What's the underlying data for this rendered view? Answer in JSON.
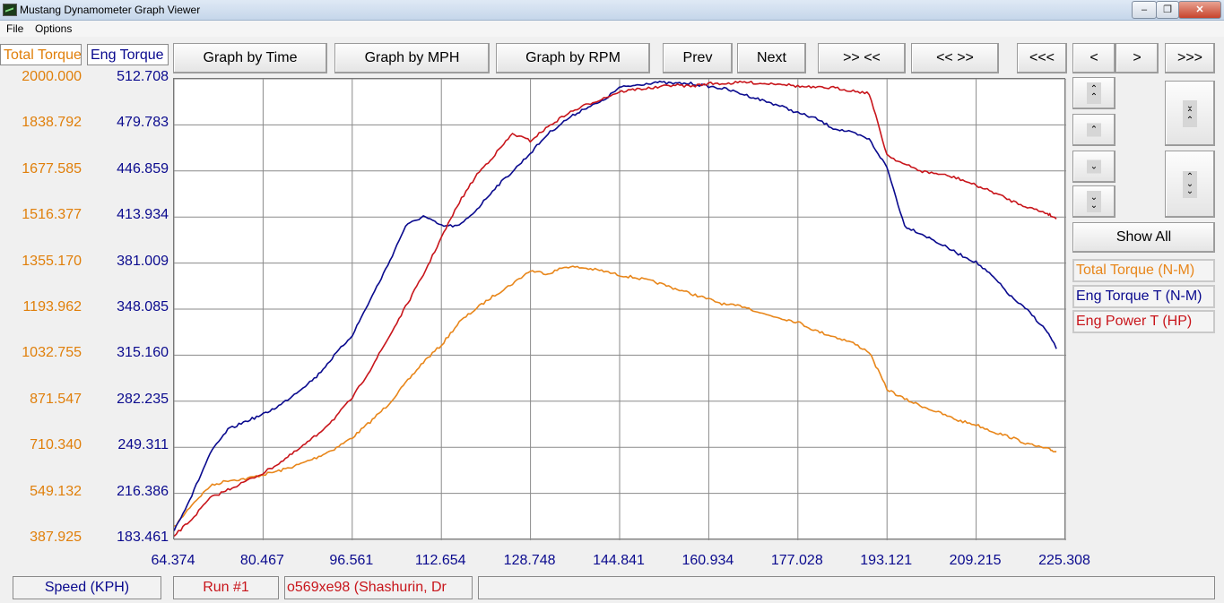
{
  "window": {
    "title": "Mustang Dynamometer Graph Viewer",
    "minimize_label": "–",
    "maximize_label": "❐",
    "close_label": "✕"
  },
  "menu": [
    "File",
    "Options"
  ],
  "toolbar": {
    "graph_by_time": "Graph by Time",
    "graph_by_mph": "Graph by MPH",
    "graph_by_rpm": "Graph by RPM",
    "prev": "Prev",
    "next": "Next",
    "zoom_in_x": ">> <<",
    "zoom_out_x": "<< >>",
    "first": "<<<",
    "back": "<",
    "forward": ">",
    "last": ">>>"
  },
  "axis_headers": {
    "left": "Total Torque",
    "right": "Eng Torque"
  },
  "right_panel": {
    "show_all": "Show All",
    "legend": [
      {
        "label": "Total Torque (N-M)",
        "color": "#e8861a"
      },
      {
        "label": "Eng Torque T (N-M)",
        "color": "#0a0a8e"
      },
      {
        "label": "Eng Power T (HP)",
        "color": "#c8151b"
      }
    ]
  },
  "status": {
    "x_axis_label": "Speed (KPH)",
    "run": "Run #1",
    "vehicle": "o569xe98 (Shashurin, Dr",
    "extra": ""
  },
  "colors": {
    "total_torque": "#e8861a",
    "eng_torque": "#0a0a8e",
    "eng_power": "#c8151b",
    "grid": "#8a8a8a"
  },
  "chart_data": {
    "type": "line",
    "xlabel": "Speed (KPH)",
    "x_ticks": [
      "64.374",
      "80.467",
      "96.561",
      "112.654",
      "128.748",
      "144.841",
      "160.934",
      "177.028",
      "193.121",
      "209.215",
      "225.308"
    ],
    "xlim": [
      64.374,
      225.308
    ],
    "left_axis": {
      "label": "Total Torque",
      "ylim": [
        387.925,
        2000.0
      ],
      "ticks": [
        "2000.000",
        "1838.792",
        "1677.585",
        "1516.377",
        "1355.170",
        "1193.962",
        "1032.755",
        "871.547",
        "710.340",
        "549.132",
        "387.925"
      ]
    },
    "right_axis": {
      "label": "Eng Torque",
      "ylim": [
        183.461,
        512.708
      ],
      "ticks": [
        "512.708",
        "479.783",
        "446.859",
        "413.934",
        "381.009",
        "348.085",
        "315.160",
        "282.235",
        "249.311",
        "216.386",
        "183.461"
      ]
    },
    "grid": true,
    "series": [
      {
        "name": "Total Torque (N-M)",
        "axis": "left",
        "color": "#e8861a",
        "x": [
          64.4,
          67.6,
          70.9,
          74.1,
          77.3,
          80.5,
          83.7,
          86.9,
          90.1,
          93.3,
          96.6,
          99.8,
          103.0,
          106.2,
          109.4,
          112.7,
          115.9,
          119.1,
          122.3,
          125.5,
          128.7,
          131.9,
          135.2,
          138.4,
          141.6,
          144.8,
          148.0,
          151.3,
          154.5,
          157.7,
          160.9,
          164.1,
          167.4,
          170.6,
          173.8,
          177.0,
          180.2,
          183.4,
          186.6,
          189.9,
          193.1,
          196.3,
          199.5,
          202.8,
          206.0,
          209.2,
          212.4,
          215.6,
          218.9,
          222.1,
          223.7
        ],
        "y": [
          430,
          510,
          575,
          595,
          600,
          615,
          630,
          650,
          675,
          705,
          745,
          800,
          860,
          935,
          1010,
          1070,
          1150,
          1200,
          1245,
          1285,
          1330,
          1320,
          1345,
          1340,
          1330,
          1315,
          1305,
          1290,
          1270,
          1250,
          1230,
          1210,
          1205,
          1180,
          1165,
          1150,
          1120,
          1100,
          1080,
          1045,
          915,
          880,
          855,
          830,
          805,
          790,
          765,
          745,
          720,
          705,
          695
        ]
      },
      {
        "name": "Eng Torque T (N-M)",
        "axis": "right",
        "color": "#0a0a8e",
        "x": [
          64.4,
          67.6,
          70.9,
          74.1,
          77.3,
          80.5,
          83.7,
          86.9,
          90.1,
          93.3,
          96.6,
          99.8,
          103.0,
          106.2,
          109.4,
          112.7,
          115.9,
          119.1,
          122.3,
          125.5,
          128.7,
          131.9,
          135.2,
          138.4,
          141.6,
          144.8,
          148.0,
          151.3,
          154.5,
          157.7,
          160.9,
          164.1,
          167.4,
          170.6,
          173.8,
          177.0,
          180.2,
          183.4,
          186.6,
          189.9,
          193.1,
          196.3,
          199.5,
          202.8,
          206.0,
          209.2,
          212.4,
          215.6,
          218.9,
          222.1,
          223.7
        ],
        "y": [
          190,
          215,
          245,
          262,
          268,
          273,
          280,
          290,
          300,
          315,
          330,
          355,
          380,
          408,
          415,
          408,
          408,
          420,
          435,
          447,
          460,
          474,
          484,
          492,
          497,
          507,
          509,
          511,
          510,
          510,
          508,
          506,
          502,
          498,
          494,
          489,
          485,
          478,
          475,
          470,
          450,
          408,
          402,
          395,
          388,
          382,
          371,
          357,
          346,
          332,
          320
        ]
      },
      {
        "name": "Eng Power T (HP)",
        "axis": "right",
        "color": "#c8151b",
        "x": [
          64.4,
          67.6,
          70.9,
          74.1,
          77.3,
          80.5,
          83.7,
          86.9,
          90.1,
          93.3,
          96.6,
          99.8,
          103.0,
          106.2,
          109.4,
          112.7,
          115.9,
          119.1,
          122.3,
          125.5,
          128.7,
          131.9,
          135.2,
          138.4,
          141.6,
          144.8,
          148.0,
          151.3,
          154.5,
          157.7,
          160.9,
          164.1,
          167.4,
          170.6,
          173.8,
          177.0,
          180.2,
          183.4,
          186.6,
          189.9,
          193.1,
          196.3,
          199.5,
          202.8,
          206.0,
          209.2,
          212.4,
          215.6,
          218.9,
          222.1,
          223.7
        ],
        "y": [
          186,
          198,
          213,
          219,
          225,
          231,
          239,
          248,
          258,
          270,
          285,
          305,
          327,
          350,
          373,
          400,
          425,
          445,
          459,
          474,
          469,
          479,
          488,
          494,
          499,
          504,
          506,
          507,
          509,
          508,
          510,
          510,
          511,
          510,
          510,
          508,
          507,
          507,
          505,
          503,
          459,
          452,
          447,
          445,
          442,
          437,
          432,
          426,
          421,
          417,
          413
        ]
      }
    ]
  }
}
